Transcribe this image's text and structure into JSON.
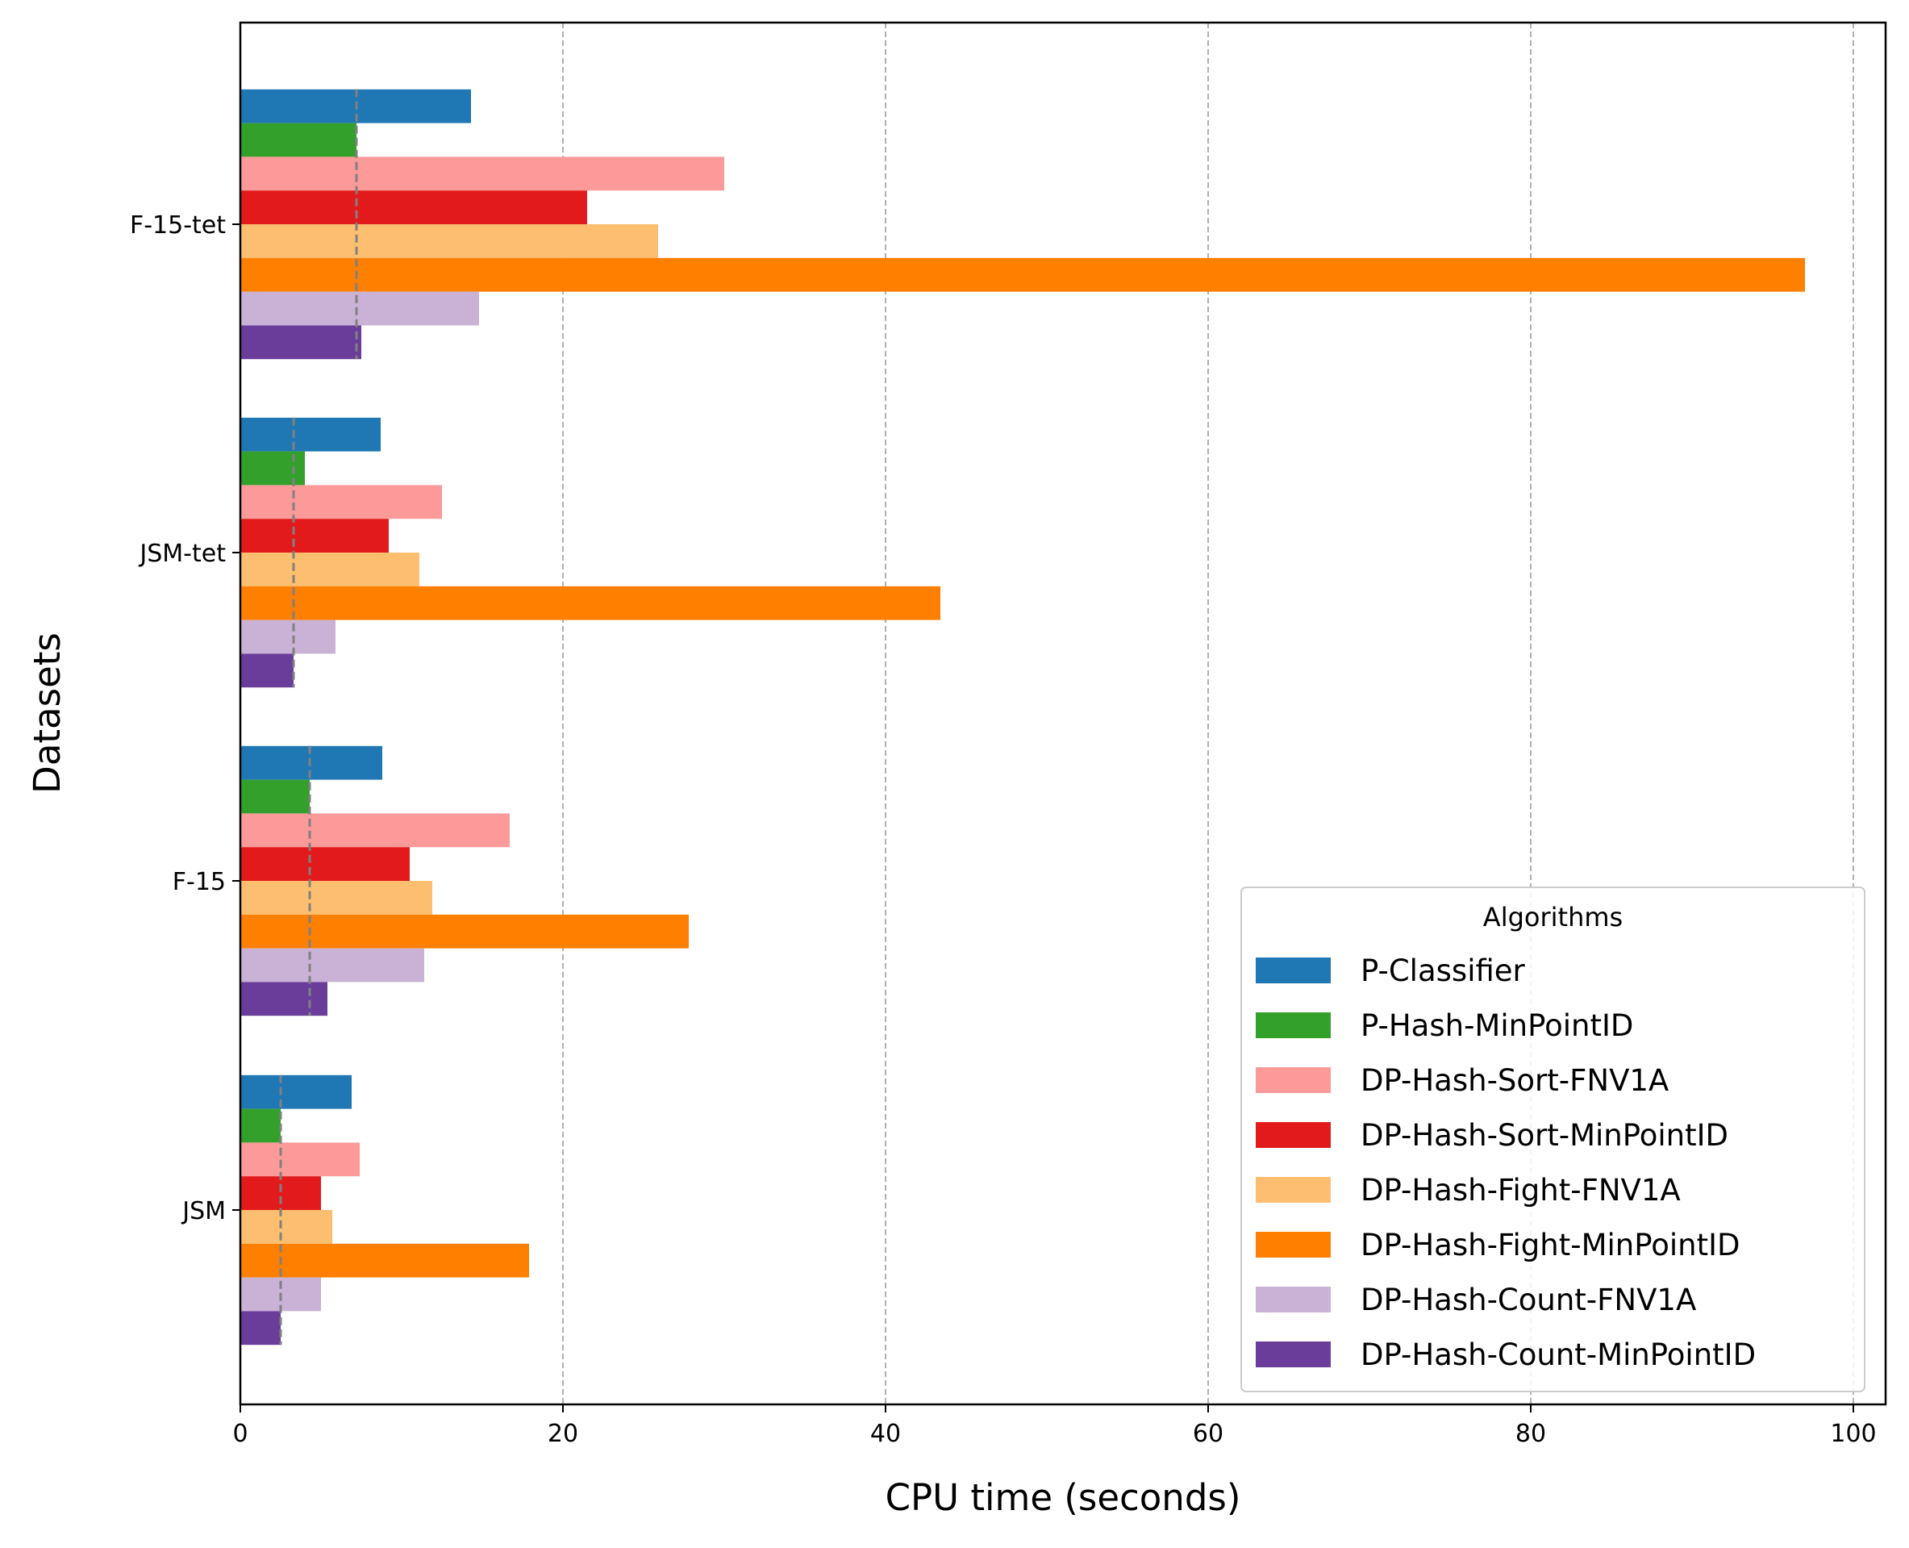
{
  "chart_data": {
    "type": "bar",
    "orientation": "horizontal",
    "xlabel": "CPU time (seconds)",
    "ylabel": "Datasets",
    "xlim": [
      0,
      102
    ],
    "xticks": [
      0,
      20,
      40,
      60,
      80,
      100
    ],
    "grid": "x-dashed",
    "categories": [
      "F-15-tet",
      "JSM-tet",
      "F-15",
      "JSM"
    ],
    "legend": {
      "title": "Algorithms",
      "placement": "lower-right"
    },
    "series": [
      {
        "name": "P-Classifier",
        "color": "#1f77b4",
        "values": [
          14.3,
          8.7,
          8.8,
          6.9
        ]
      },
      {
        "name": "P-Hash-MinPointID",
        "color": "#33a02c",
        "values": [
          7.2,
          4.0,
          4.3,
          2.5
        ]
      },
      {
        "name": "DP-Hash-Sort-FNV1A",
        "color": "#fb9a99",
        "values": [
          30.0,
          12.5,
          16.7,
          7.4
        ]
      },
      {
        "name": "DP-Hash-Sort-MinPointID",
        "color": "#e31a1c",
        "values": [
          21.5,
          9.2,
          10.5,
          5.0
        ]
      },
      {
        "name": "DP-Hash-Fight-FNV1A",
        "color": "#fdbf6f",
        "values": [
          25.9,
          11.1,
          11.9,
          5.7
        ]
      },
      {
        "name": "DP-Hash-Fight-MinPointID",
        "color": "#ff7f00",
        "values": [
          97.0,
          43.4,
          27.8,
          17.9
        ]
      },
      {
        "name": "DP-Hash-Count-FNV1A",
        "color": "#cab2d6",
        "values": [
          14.8,
          5.9,
          11.4,
          5.0
        ]
      },
      {
        "name": "DP-Hash-Count-MinPointID",
        "color": "#6a3d9a",
        "values": [
          7.5,
          3.3,
          5.4,
          2.5
        ]
      }
    ],
    "reference_lines": [
      7.2,
      3.3,
      4.3,
      2.5
    ]
  }
}
